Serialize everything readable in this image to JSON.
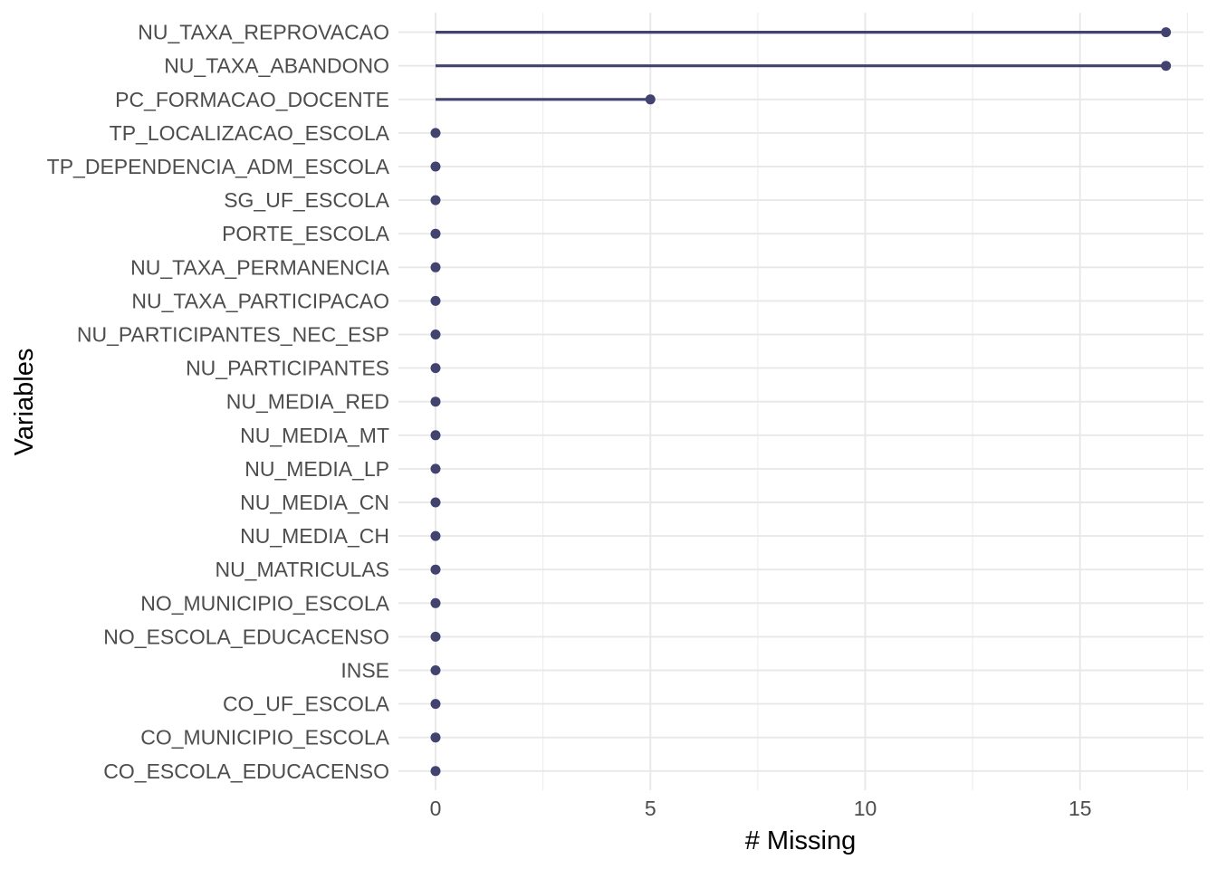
{
  "chart_data": {
    "type": "bar",
    "variant": "lollipop",
    "orientation": "horizontal",
    "title": "",
    "xlabel": "# Missing",
    "ylabel": "Variables",
    "categories": [
      "NU_TAXA_REPROVACAO",
      "NU_TAXA_ABANDONO",
      "PC_FORMACAO_DOCENTE",
      "TP_LOCALIZACAO_ESCOLA",
      "TP_DEPENDENCIA_ADM_ESCOLA",
      "SG_UF_ESCOLA",
      "PORTE_ESCOLA",
      "NU_TAXA_PERMANENCIA",
      "NU_TAXA_PARTICIPACAO",
      "NU_PARTICIPANTES_NEC_ESP",
      "NU_PARTICIPANTES",
      "NU_MEDIA_RED",
      "NU_MEDIA_MT",
      "NU_MEDIA_LP",
      "NU_MEDIA_CN",
      "NU_MEDIA_CH",
      "NU_MATRICULAS",
      "NO_MUNICIPIO_ESCOLA",
      "NO_ESCOLA_EDUCACENSO",
      "INSE",
      "CO_UF_ESCOLA",
      "CO_MUNICIPIO_ESCOLA",
      "CO_ESCOLA_EDUCACENSO"
    ],
    "values": [
      17,
      17,
      5,
      0,
      0,
      0,
      0,
      0,
      0,
      0,
      0,
      0,
      0,
      0,
      0,
      0,
      0,
      0,
      0,
      0,
      0,
      0,
      0
    ],
    "xlim": [
      -0.85,
      17.85
    ],
    "x_major_ticks": [
      0,
      5,
      10,
      15
    ],
    "x_tick_labels": [
      "0",
      "5",
      "10",
      "15"
    ],
    "x_minor_ticks": [
      2.5,
      7.5,
      12.5,
      17.5
    ],
    "grid": true,
    "legend": false,
    "colors": {
      "point": "#434370",
      "stem": "#434370",
      "grid_major": "#e8e8e8",
      "grid_minor": "#ededed",
      "tick_label": "#4d4d4d",
      "axis_title": "#000000",
      "background": "#ffffff"
    }
  }
}
